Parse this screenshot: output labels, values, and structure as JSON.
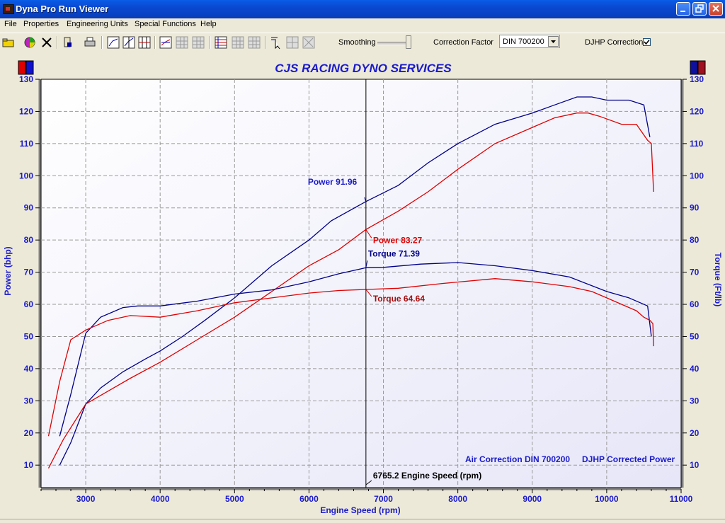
{
  "window": {
    "title": "Dyna Pro Run Viewer"
  },
  "menu": [
    "File",
    "Properties",
    "Engineering Units",
    "Special Functions",
    "Help"
  ],
  "toolbar": {
    "smoothing_label": "Smoothing",
    "smoothing_level": 1.0,
    "correction_factor_label": "Correction Factor",
    "correction_factor_value": "DIN 700200",
    "djhp_label": "DJHP Correction",
    "djhp_checked": true
  },
  "colors": {
    "blue": "#00008b",
    "red": "#e00000",
    "axis_text": "#1a1acc",
    "title": "#1a1acc"
  },
  "chart_data": {
    "type": "line",
    "title": "CJS RACING DYNO SERVICES",
    "xlabel": "Engine Speed (rpm)",
    "ylabel_left": "Power (bhp)",
    "ylabel_right": "Torque (Ft/lb)",
    "xlim": [
      2400,
      11000
    ],
    "ylim": [
      3,
      130
    ],
    "xticks": [
      3000,
      4000,
      5000,
      6000,
      7000,
      8000,
      9000,
      10000,
      11000
    ],
    "yticks": [
      10,
      20,
      30,
      40,
      50,
      60,
      70,
      80,
      90,
      100,
      110,
      120,
      130
    ],
    "grid": true,
    "cursor": {
      "x": 6765.2,
      "label": "6765.2 Engine Speed (rpm)"
    },
    "annotations": [
      {
        "text": "Power 91.96",
        "series": "blue_power"
      },
      {
        "text": "Power 83.27",
        "series": "red_power"
      },
      {
        "text": "Torque 71.39",
        "series": "blue_torque"
      },
      {
        "text": "Torque 64.64",
        "series": "red_torque"
      }
    ],
    "footer_left": "Air Correction DIN 700200",
    "footer_right": "DJHP Corrected Power",
    "series": [
      {
        "id": "blue_power",
        "color": "#00008b",
        "x": [
          2650,
          2800,
          3000,
          3200,
          3500,
          3800,
          4000,
          4300,
          4600,
          5000,
          5500,
          6000,
          6300,
          6765,
          7200,
          7600,
          8000,
          8500,
          9000,
          9300,
          9600,
          9800,
          10000,
          10300,
          10500,
          10580
        ],
        "y": [
          10,
          17,
          29,
          34,
          39,
          43,
          45.5,
          50,
          55,
          62,
          72,
          80,
          86,
          91.96,
          97,
          104,
          110,
          116,
          119.5,
          122,
          124.5,
          124.5,
          123.5,
          123.5,
          122,
          112
        ]
      },
      {
        "id": "red_power",
        "color": "#e00000",
        "x": [
          2500,
          2700,
          3000,
          3300,
          3600,
          4000,
          4500,
          5000,
          5500,
          6000,
          6400,
          6765,
          7200,
          7600,
          8000,
          8500,
          9000,
          9300,
          9600,
          9750,
          9900,
          10200,
          10400,
          10550,
          10600,
          10630
        ],
        "y": [
          9,
          18,
          29,
          33,
          37,
          42,
          49,
          56,
          64,
          72,
          77,
          83.27,
          89,
          95,
          102,
          110,
          115,
          118,
          119.5,
          119.5,
          118.5,
          116,
          116,
          111,
          110,
          95
        ]
      },
      {
        "id": "blue_torque",
        "color": "#00008b",
        "x": [
          2650,
          2800,
          3000,
          3200,
          3500,
          3700,
          4000,
          4500,
          5000,
          5500,
          6000,
          6400,
          6765,
          7000,
          7500,
          8000,
          8500,
          9000,
          9500,
          10000,
          10300,
          10550,
          10600
        ],
        "y": [
          19,
          32,
          51,
          56,
          59,
          59.5,
          59.5,
          61,
          63.2,
          64.5,
          67,
          69.5,
          71.39,
          71.5,
          72.5,
          73,
          72,
          70.5,
          68.5,
          64,
          62,
          59.5,
          50
        ]
      },
      {
        "id": "red_torque",
        "color": "#e00000",
        "x": [
          2500,
          2650,
          2800,
          3000,
          3300,
          3600,
          4000,
          4500,
          5000,
          5500,
          6000,
          6400,
          6765,
          7200,
          7800,
          8500,
          9000,
          9500,
          9800,
          10000,
          10200,
          10400,
          10500,
          10580,
          10620,
          10630
        ],
        "y": [
          19,
          36,
          49,
          52,
          55,
          56.5,
          56,
          58,
          60.5,
          62,
          63.5,
          64.3,
          64.64,
          65,
          66.5,
          68,
          67,
          65.5,
          64,
          62,
          60,
          58,
          56,
          55,
          54,
          47
        ]
      }
    ]
  }
}
